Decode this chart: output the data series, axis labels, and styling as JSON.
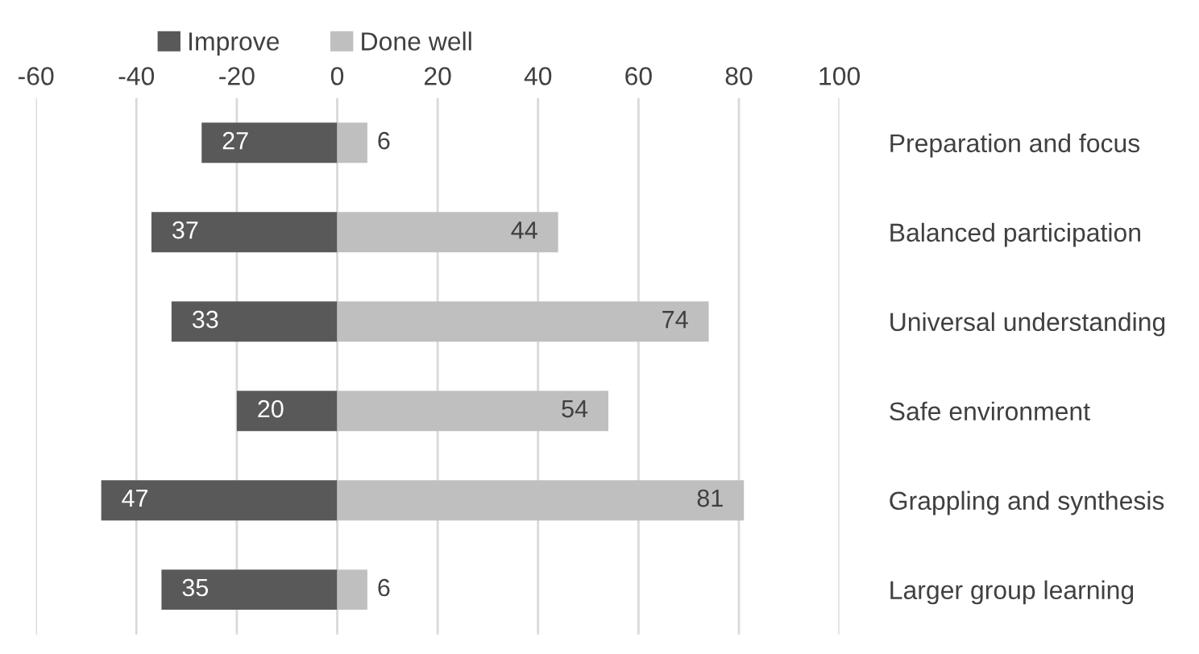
{
  "chart_data": {
    "type": "bar",
    "orientation": "horizontal",
    "categories": [
      "Preparation and focus",
      "Balanced participation",
      "Universal understanding",
      "Safe environment",
      "Grappling and synthesis",
      "Larger group learning"
    ],
    "series": [
      {
        "name": "Improve",
        "color": "#595959",
        "base": [
          -27,
          -37,
          -33,
          -20,
          -47,
          -35
        ],
        "values": [
          27,
          37,
          33,
          20,
          47,
          35
        ],
        "value_labels": [
          "27",
          "37",
          "33",
          "20",
          "47",
          "35"
        ]
      },
      {
        "name": "Done well",
        "color": "#bfbfbf",
        "base": [
          0,
          0,
          0,
          0,
          0,
          0
        ],
        "values": [
          6,
          44,
          74,
          54,
          81,
          6
        ],
        "value_labels": [
          "6",
          "44",
          "74",
          "54",
          "81",
          "6"
        ]
      }
    ],
    "xlim": [
      -60,
      100
    ],
    "xticks": [
      -60,
      -40,
      -20,
      0,
      20,
      40,
      60,
      80,
      100
    ],
    "grid": "x",
    "legend": "top left"
  }
}
